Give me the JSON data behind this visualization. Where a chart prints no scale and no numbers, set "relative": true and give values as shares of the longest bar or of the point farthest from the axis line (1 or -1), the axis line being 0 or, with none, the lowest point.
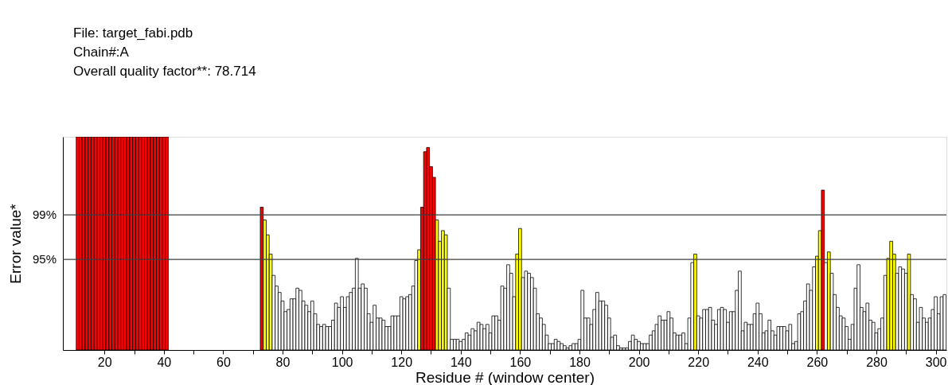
{
  "chart_data": {
    "type": "bar",
    "relative": true,
    "title": "File: target_fabi.pdb",
    "subtitle": "Chain#:A",
    "annotations": [
      "Overall quality factor**: 78.714",
      "95%",
      "99%"
    ],
    "xlabel": "Residue # (window center)",
    "ylabel": "Error value*",
    "xlim": [
      6,
      303.6
    ],
    "xticks": [
      20,
      {
        "value": 30,
        "label": null
      },
      40,
      {
        "value": 50,
        "label": null
      },
      60,
      {
        "value": 70,
        "label": null
      },
      80,
      {
        "value": 90,
        "label": null
      },
      100,
      {
        "value": 110,
        "label": null
      },
      120,
      {
        "value": 130,
        "label": null
      },
      140,
      {
        "value": 150,
        "label": null
      },
      160,
      {
        "value": 170,
        "label": null
      },
      180,
      {
        "value": 190,
        "label": null
      },
      200,
      {
        "value": 210,
        "label": null
      },
      220,
      {
        "value": 230,
        "label": null
      },
      240,
      {
        "value": 250,
        "label": null
      },
      260,
      {
        "value": 270,
        "label": null
      },
      280,
      {
        "value": 290,
        "label": null
      },
      300
    ],
    "ref_lines": [
      {
        "axis": "y",
        "value": 0.425,
        "color": "#404040"
      },
      {
        "axis": "y",
        "value": 0.634,
        "color": "#404040"
      }
    ],
    "x": [
      11,
      12,
      13,
      14,
      15,
      16,
      17,
      18,
      19,
      20,
      21,
      22,
      23,
      24,
      25,
      26,
      27,
      28,
      29,
      30,
      31,
      32,
      33,
      34,
      35,
      36,
      37,
      38,
      39,
      40,
      41,
      42,
      43,
      44,
      45,
      46,
      47,
      48,
      49,
      50,
      51,
      52,
      53,
      54,
      55,
      56,
      57,
      58,
      59,
      60,
      61,
      62,
      63,
      64,
      65,
      66,
      67,
      68,
      69,
      70,
      71,
      72,
      73,
      74,
      75,
      76,
      77,
      78,
      79,
      80,
      81,
      82,
      83,
      84,
      85,
      86,
      87,
      88,
      89,
      90,
      91,
      92,
      93,
      94,
      95,
      96,
      97,
      98,
      99,
      100,
      101,
      102,
      103,
      104,
      105,
      106,
      107,
      108,
      109,
      110,
      111,
      112,
      113,
      114,
      115,
      116,
      117,
      118,
      119,
      120,
      121,
      122,
      123,
      124,
      125,
      126,
      127,
      128,
      129,
      130,
      131,
      132,
      133,
      134,
      135,
      136,
      137,
      138,
      139,
      140,
      141,
      142,
      143,
      144,
      145,
      146,
      147,
      148,
      149,
      150,
      151,
      152,
      153,
      154,
      155,
      156,
      157,
      158,
      159,
      160,
      161,
      162,
      163,
      164,
      165,
      166,
      167,
      168,
      169,
      170,
      171,
      172,
      173,
      174,
      175,
      176,
      177,
      178,
      179,
      180,
      181,
      182,
      183,
      184,
      185,
      186,
      187,
      188,
      189,
      190,
      191,
      192,
      193,
      194,
      195,
      196,
      197,
      198,
      199,
      200,
      201,
      202,
      203,
      204,
      205,
      206,
      207,
      208,
      209,
      210,
      211,
      212,
      213,
      214,
      215,
      216,
      217,
      218,
      219,
      220,
      221,
      222,
      223,
      224,
      225,
      226,
      227,
      228,
      229,
      230,
      231,
      232,
      233,
      234,
      235,
      236,
      237,
      238,
      239,
      240,
      241,
      242,
      243,
      244,
      245,
      246,
      247,
      248,
      249,
      250,
      251,
      252,
      253,
      254,
      255,
      256,
      257,
      258,
      259,
      260,
      261,
      262,
      263,
      264,
      265,
      266,
      267,
      268,
      269,
      270,
      271,
      272,
      273,
      274,
      275,
      276,
      277,
      278,
      279,
      280,
      281,
      282,
      283,
      284,
      285,
      286,
      287,
      288,
      289,
      290,
      291,
      292,
      293,
      294,
      295,
      296,
      297,
      298,
      299,
      300,
      301,
      302,
      303
    ],
    "values": [
      1,
      1,
      1,
      1,
      1,
      1,
      1,
      1,
      1,
      1,
      1,
      1,
      1,
      1,
      1,
      1,
      1,
      1,
      1,
      1,
      1,
      1,
      1,
      1,
      1,
      1,
      1,
      1,
      1,
      1,
      1,
      null,
      null,
      null,
      null,
      null,
      null,
      null,
      null,
      null,
      null,
      null,
      null,
      null,
      null,
      null,
      null,
      null,
      null,
      null,
      null,
      null,
      null,
      null,
      null,
      null,
      null,
      null,
      null,
      null,
      null,
      null,
      0.67,
      0.61,
      0.54,
      0.45,
      0.35,
      0.3,
      0.27,
      0.23,
      0.18,
      0.19,
      0.24,
      0.24,
      0.29,
      0.28,
      0.23,
      0.21,
      0.18,
      0.23,
      0.17,
      0.12,
      0.11,
      0.12,
      0.11,
      0.11,
      0.14,
      0.22,
      0.2,
      0.25,
      0.2,
      0.25,
      0.27,
      0.29,
      0.43,
      0.29,
      0.31,
      0.29,
      0.17,
      0.13,
      0.21,
      0.15,
      0.15,
      0.14,
      0.11,
      0.11,
      0.16,
      0.16,
      0.16,
      0.25,
      0.24,
      0.25,
      0.26,
      0.3,
      0.42,
      0.47,
      0.67,
      0.93,
      0.95,
      0.86,
      0.81,
      0.61,
      0.51,
      0.56,
      0.54,
      0.29,
      0.05,
      0.05,
      0.05,
      0.04,
      0.05,
      0.08,
      0.07,
      0.1,
      0.09,
      0.13,
      0.12,
      0.1,
      0.12,
      0.08,
      0.16,
      0.16,
      0.14,
      0.3,
      0.29,
      0.4,
      0.36,
      0.25,
      0.45,
      0.57,
      0.34,
      0.37,
      0.36,
      0.34,
      0.29,
      0.17,
      0.15,
      0.12,
      0.07,
      0.03,
      0.03,
      0.05,
      0.04,
      0.03,
      0.02,
      0.01,
      0.02,
      0.03,
      0.03,
      0.05,
      0.28,
      0.15,
      0.15,
      0.12,
      0.19,
      0.27,
      0.23,
      0.23,
      0.21,
      0.15,
      0.06,
      0.07,
      0.02,
      0.01,
      0.01,
      0.01,
      0.04,
      0.07,
      0.05,
      0.04,
      0.03,
      0.03,
      0.03,
      0.07,
      0.09,
      0.12,
      0.16,
      0.14,
      0.14,
      0.18,
      0.15,
      0.08,
      0.07,
      0.07,
      0.08,
      0.03,
      0.15,
      0.41,
      0.45,
      0.16,
      0.15,
      0.19,
      0.19,
      0.2,
      0.14,
      0.12,
      0.19,
      0.2,
      0.19,
      0.13,
      0.18,
      0.18,
      0.28,
      0.37,
      0.09,
      0.13,
      0.12,
      0.12,
      0.17,
      0.22,
      0.17,
      0.08,
      0.09,
      0.14,
      0.09,
      0.07,
      0.11,
      0.11,
      0.11,
      0.09,
      0.12,
      0.03,
      0.04,
      0.17,
      0.18,
      0.23,
      0.31,
      0.28,
      0.39,
      0.44,
      0.56,
      0.75,
      0.41,
      0.46,
      0.36,
      0.26,
      0.2,
      0.16,
      0.15,
      0.11,
      0.05,
      0.12,
      0.29,
      0.4,
      0.2,
      0.18,
      0.22,
      0.14,
      0.13,
      0.08,
      0.1,
      0.15,
      0.35,
      0.43,
      0.51,
      0.45,
      0.36,
      0.39,
      0.38,
      0.36,
      0.45,
      0.26,
      0.24,
      0.13,
      0.2,
      0.15,
      0.13,
      0.15,
      0.19,
      0.25,
      0.17,
      0.25,
      0.26
    ],
    "colors": [
      "#ff0000",
      "#ff0000",
      "#ff0000",
      "#ff0000",
      "#ff0000",
      "#ff0000",
      "#ff0000",
      "#ff0000",
      "#ff0000",
      "#ff0000",
      "#ff0000",
      "#ff0000",
      "#ff0000",
      "#ff0000",
      "#ff0000",
      "#ff0000",
      "#ff0000",
      "#ff0000",
      "#ff0000",
      "#ff0000",
      "#ff0000",
      "#ff0000",
      "#ff0000",
      "#ff0000",
      "#ff0000",
      "#ff0000",
      "#ff0000",
      "#ff0000",
      "#ff0000",
      "#ff0000",
      "#ff0000",
      null,
      null,
      null,
      null,
      null,
      null,
      null,
      null,
      null,
      null,
      null,
      null,
      null,
      null,
      null,
      null,
      null,
      null,
      null,
      null,
      null,
      null,
      null,
      null,
      null,
      null,
      null,
      null,
      null,
      null,
      null,
      "#ff0000",
      "#ffff00",
      "#ffff00",
      "#ffff00",
      "#ffffff",
      "#ffffff",
      "#ffffff",
      "#ffffff",
      "#ffffff",
      "#ffffff",
      "#ffffff",
      "#ffffff",
      "#ffffff",
      "#ffffff",
      "#ffffff",
      "#ffffff",
      "#ffffff",
      "#ffffff",
      "#ffffff",
      "#ffffff",
      "#ffffff",
      "#ffffff",
      "#ffffff",
      "#ffffff",
      "#ffffff",
      "#ffffff",
      "#ffffff",
      "#ffffff",
      "#ffffff",
      "#ffffff",
      "#ffffff",
      "#ffffff",
      "#ffffff",
      "#ffffff",
      "#ffffff",
      "#ffffff",
      "#ffffff",
      "#ffffff",
      "#ffffff",
      "#ffffff",
      "#ffffff",
      "#ffffff",
      "#ffffff",
      "#ffffff",
      "#ffffff",
      "#ffffff",
      "#ffffff",
      "#ffffff",
      "#ffffff",
      "#ffffff",
      "#ffffff",
      "#ffffff",
      "#ffffff",
      "#ffff00",
      "#ff0000",
      "#ff0000",
      "#ff0000",
      "#ff0000",
      "#ff0000",
      "#ffff00",
      "#ffff00",
      "#ffff00",
      "#ffff00",
      "#ffffff",
      "#ffffff",
      "#ffffff",
      "#ffffff",
      "#ffffff",
      "#ffffff",
      "#ffffff",
      "#ffffff",
      "#ffffff",
      "#ffffff",
      "#ffffff",
      "#ffffff",
      "#ffffff",
      "#ffffff",
      "#ffffff",
      "#ffffff",
      "#ffffff",
      "#ffffff",
      "#ffffff",
      "#ffffff",
      "#ffffff",
      "#ffffff",
      "#ffffff",
      "#ffff00",
      "#ffff00",
      "#ffffff",
      "#ffffff",
      "#ffffff",
      "#ffffff",
      "#ffffff",
      "#ffffff",
      "#ffffff",
      "#ffffff",
      "#ffffff",
      "#ffffff",
      "#ffffff",
      "#ffffff",
      "#ffffff",
      "#ffffff",
      "#ffffff",
      "#ffffff",
      "#ffffff",
      "#ffffff",
      "#ffffff",
      "#ffffff",
      "#ffffff",
      "#ffffff",
      "#ffffff",
      "#ffffff",
      "#ffffff",
      "#ffffff",
      "#ffffff",
      "#ffffff",
      "#ffffff",
      "#ffffff",
      "#ffffff",
      "#ffffff",
      "#ffffff",
      "#ffffff",
      "#ffffff",
      "#ffffff",
      "#ffffff",
      "#ffffff",
      "#ffffff",
      "#ffffff",
      "#ffffff",
      "#ffffff",
      "#ffffff",
      "#ffffff",
      "#ffffff",
      "#ffffff",
      "#ffffff",
      "#ffffff",
      "#ffffff",
      "#ffffff",
      "#ffffff",
      "#ffffff",
      "#ffffff",
      "#ffffff",
      "#ffffff",
      "#ffffff",
      "#ffffff",
      "#ffffff",
      "#ffff00",
      "#ffffff",
      "#ffffff",
      "#ffffff",
      "#ffffff",
      "#ffffff",
      "#ffffff",
      "#ffffff",
      "#ffffff",
      "#ffffff",
      "#ffffff",
      "#ffffff",
      "#ffffff",
      "#ffffff",
      "#ffffff",
      "#ffffff",
      "#ffffff",
      "#ffffff",
      "#ffffff",
      "#ffffff",
      "#ffffff",
      "#ffffff",
      "#ffffff",
      "#ffffff",
      "#ffffff",
      "#ffffff",
      "#ffffff",
      "#ffffff",
      "#ffffff",
      "#ffffff",
      "#ffffff",
      "#ffffff",
      "#ffffff",
      "#ffffff",
      "#ffffff",
      "#ffffff",
      "#ffffff",
      "#ffffff",
      "#ffffff",
      "#ffffff",
      "#ffffff",
      "#ffff00",
      "#ffff00",
      "#ff0000",
      "#ffffff",
      "#ffff00",
      "#ffffff",
      "#ffffff",
      "#ffffff",
      "#ffffff",
      "#ffffff",
      "#ffffff",
      "#ffffff",
      "#ffffff",
      "#ffffff",
      "#ffffff",
      "#ffffff",
      "#ffffff",
      "#ffffff",
      "#ffffff",
      "#ffffff",
      "#ffffff",
      "#ffffff",
      "#ffffff",
      "#ffffff",
      "#ffff00",
      "#ffff00",
      "#ffff00",
      "#ffffff",
      "#ffffff",
      "#ffffff",
      "#ffffff",
      "#ffff00",
      "#ffffff",
      "#ffffff",
      "#ffffff",
      "#ffffff",
      "#ffffff",
      "#ffffff",
      "#ffffff",
      "#ffffff",
      "#ffffff",
      "#ffffff",
      "#ffffff",
      "#ffffff"
    ]
  }
}
